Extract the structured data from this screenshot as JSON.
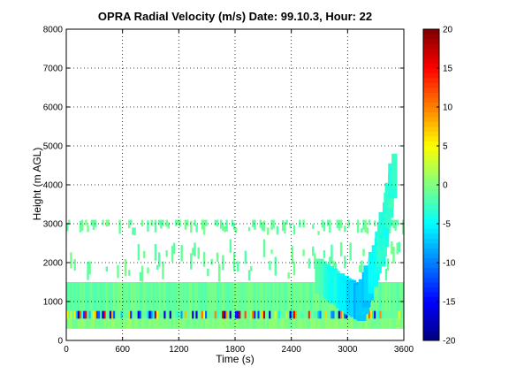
{
  "chart_data": {
    "type": "heatmap",
    "title": "OPRA Radial Velocity (m/s)  Date: 99.10.3, Hour: 22",
    "xlabel": "Time (s)",
    "ylabel": "Height (m AGL)",
    "xlim": [
      0,
      3600
    ],
    "ylim": [
      0,
      8000
    ],
    "xticks": [
      0,
      600,
      1200,
      1800,
      2400,
      3000,
      3600
    ],
    "yticks": [
      0,
      1000,
      2000,
      3000,
      4000,
      5000,
      6000,
      7000,
      8000
    ],
    "grid": true,
    "colorbar": {
      "range": [
        -20,
        20
      ],
      "ticks": [
        20,
        15,
        10,
        5,
        0,
        -5,
        -10,
        -15,
        -20
      ],
      "colormap": "jet"
    },
    "layers": [
      {
        "t0": 0,
        "t1": 3600,
        "h0": 300,
        "h1": 560,
        "v": 0
      },
      {
        "t0": 0,
        "t1": 3600,
        "h0": 560,
        "h1": 760,
        "v": "mixed"
      },
      {
        "t0": 0,
        "t1": 3600,
        "h0": 760,
        "h1": 1500,
        "v": -1
      },
      {
        "t0": 0,
        "t1": 3600,
        "h0": 1500,
        "h1": 2600,
        "v": -1,
        "coverage": "sparse"
      },
      {
        "t0": 0,
        "t1": 3600,
        "h0": 2700,
        "h1": 3100,
        "v": -1,
        "coverage": "sparse"
      }
    ],
    "plume": [
      {
        "t": 2700,
        "h": 1500,
        "v": -2
      },
      {
        "t": 3000,
        "h": 1000,
        "v": -6
      },
      {
        "t": 3150,
        "h": 800,
        "v": -8
      },
      {
        "t": 3350,
        "h": 2200,
        "v": -4
      },
      {
        "t": 3500,
        "h": 4200,
        "v": -3
      }
    ]
  }
}
